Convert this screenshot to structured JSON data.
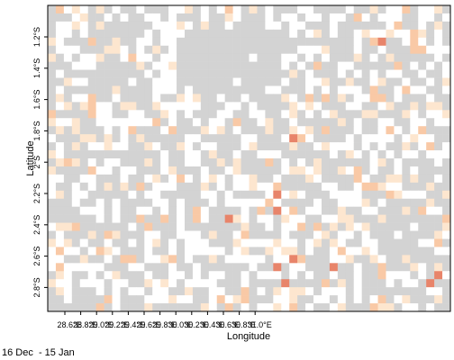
{
  "map": {
    "x_axis": {
      "title": "Longitude",
      "ticks": [
        "28.6°E",
        "28.8°E",
        "29.0°E",
        "29.2°E",
        "29.4°E",
        "29.6°E",
        "29.8°E",
        "30.0°E",
        "30.2°E",
        "30.4°E",
        "30.6°E",
        "30.8°E",
        "31.0°E"
      ]
    },
    "y_axis": {
      "title": "Latitude",
      "ticks": [
        "1.2°S",
        "1.4°S",
        "1.6°S",
        "1.8°S",
        "2°S",
        "2.2°S",
        "2.4°S",
        "2.6°S",
        "2.8°S"
      ]
    },
    "colors": {
      "no_data": "#d3d3d3",
      "zero": "#ffffff",
      "low": "#fde6cf",
      "mid": "#f9c9a6",
      "high": "#e8846a"
    },
    "grid": {
      "cols": 50,
      "rows": 38
    },
    "seed": 137,
    "high_cells": [
      [
        41,
        4
      ],
      [
        30,
        16
      ],
      [
        28,
        23
      ],
      [
        28,
        25
      ],
      [
        22,
        26
      ],
      [
        30,
        31
      ],
      [
        35,
        32
      ],
      [
        28,
        32
      ],
      [
        48,
        33
      ],
      [
        29,
        34
      ],
      [
        47,
        34
      ]
    ]
  },
  "footer": {
    "period": "16 Dec  - 15 Jan"
  }
}
